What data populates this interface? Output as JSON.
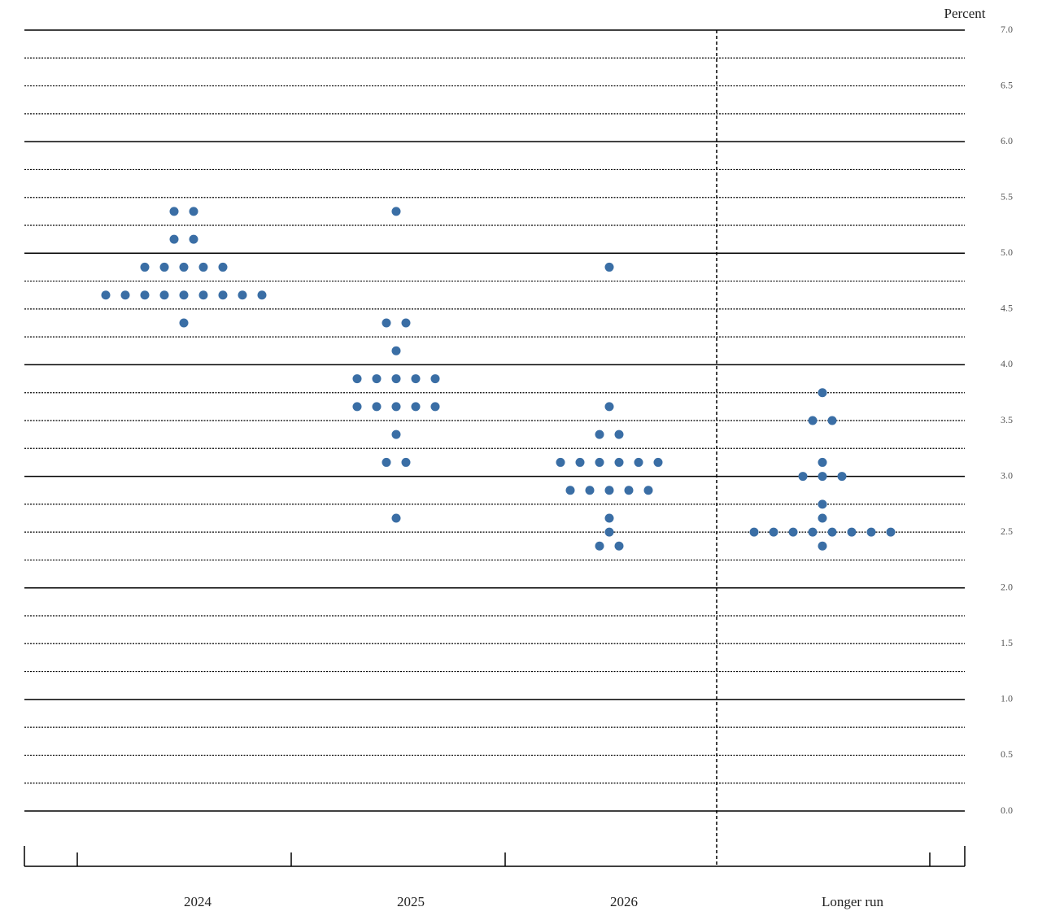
{
  "chart_data": {
    "type": "dot",
    "y_label": "Percent",
    "categories": [
      "2024",
      "2025",
      "2026",
      "Longer run"
    ],
    "values": [
      [
        5.375,
        5.375,
        5.125,
        5.125,
        4.875,
        4.875,
        4.875,
        4.875,
        4.875,
        4.625,
        4.625,
        4.625,
        4.625,
        4.625,
        4.625,
        4.625,
        4.625,
        4.625,
        4.375
      ],
      [
        5.375,
        4.375,
        4.375,
        4.125,
        3.875,
        3.875,
        3.875,
        3.875,
        3.875,
        3.625,
        3.625,
        3.625,
        3.625,
        3.625,
        3.375,
        3.125,
        3.125,
        2.625
      ],
      [
        4.875,
        3.625,
        3.375,
        3.375,
        3.125,
        3.125,
        3.125,
        3.125,
        3.125,
        3.125,
        2.875,
        2.875,
        2.875,
        2.875,
        2.875,
        2.625,
        2.5,
        2.375,
        2.375
      ],
      [
        3.75,
        3.5,
        3.5,
        3.125,
        3.0,
        3.0,
        3.0,
        2.75,
        2.625,
        2.5,
        2.5,
        2.5,
        2.5,
        2.5,
        2.5,
        2.5,
        2.5,
        2.375
      ]
    ],
    "color": "#3a6ea5",
    "ylim": [
      0,
      7
    ],
    "yticks": [
      {
        "value": 0,
        "label": "0.0"
      },
      {
        "value": 0.5,
        "label": "0.5"
      },
      {
        "value": 1,
        "label": "1.0"
      },
      {
        "value": 1.5,
        "label": "1.5"
      },
      {
        "value": 2,
        "label": "2.0"
      },
      {
        "value": 2.5,
        "label": "2.5"
      },
      {
        "value": 3,
        "label": "3.0"
      },
      {
        "value": 3.5,
        "label": "3.5"
      },
      {
        "value": 4,
        "label": "4.0"
      },
      {
        "value": 4.5,
        "label": "4.5"
      },
      {
        "value": 5,
        "label": "5.0"
      },
      {
        "value": 5.5,
        "label": "5.5"
      },
      {
        "value": 6,
        "label": "6.0"
      },
      {
        "value": 6.5,
        "label": "6.5"
      },
      {
        "value": 7,
        "label": "7.0"
      }
    ],
    "grid": true
  }
}
